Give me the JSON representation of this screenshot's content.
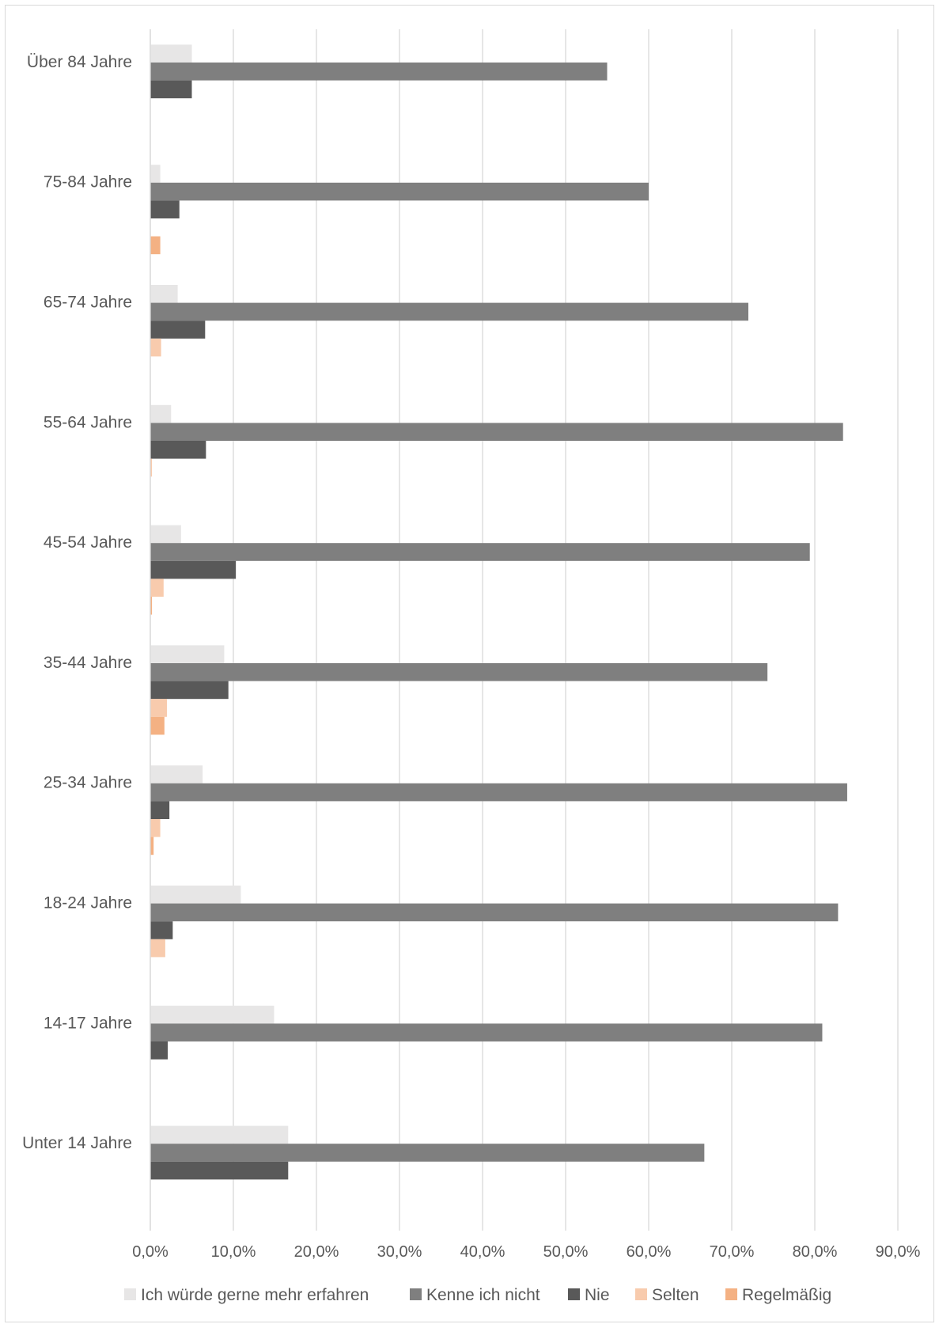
{
  "chart_data": {
    "type": "bar",
    "orientation": "horizontal",
    "categories": [
      "Über 84 Jahre",
      "75-84 Jahre",
      "65-74 Jahre",
      "55-64 Jahre",
      "45-54 Jahre",
      "35-44 Jahre",
      "25-34 Jahre",
      "18-24 Jahre",
      "14-17 Jahre",
      "Unter 14 Jahre"
    ],
    "series": [
      {
        "name": "Ich würde gerne mehr erfahren",
        "color": "#e7e6e6",
        "values": [
          5.0,
          1.2,
          3.3,
          2.5,
          3.7,
          8.9,
          6.3,
          10.9,
          14.9,
          16.6
        ]
      },
      {
        "name": "Kenne ich nicht",
        "color": "#7f7f7f",
        "values": [
          55.0,
          60.0,
          72.0,
          83.4,
          79.4,
          74.3,
          83.9,
          82.8,
          80.9,
          66.7
        ]
      },
      {
        "name": "Nie",
        "color": "#595959",
        "values": [
          5.0,
          3.5,
          6.6,
          6.7,
          10.3,
          9.4,
          2.3,
          2.7,
          2.1,
          16.6
        ]
      },
      {
        "name": "Selten",
        "color": "#f8cbad",
        "values": [
          0,
          0,
          1.3,
          0.2,
          1.6,
          2.0,
          1.2,
          1.8,
          0,
          0
        ]
      },
      {
        "name": "Regelmäßig",
        "color": "#f4b183",
        "values": [
          0,
          1.2,
          0,
          0,
          0.2,
          1.7,
          0.4,
          0,
          0,
          0
        ]
      }
    ],
    "xlim": [
      0,
      90
    ],
    "xticks": [
      "0,0%",
      "10,0%",
      "20,0%",
      "30,0%",
      "40,0%",
      "50,0%",
      "60,0%",
      "70,0%",
      "80,0%",
      "90,0%"
    ],
    "grid": true,
    "legend_position": "bottom",
    "title": "",
    "xlabel": "",
    "ylabel": ""
  }
}
